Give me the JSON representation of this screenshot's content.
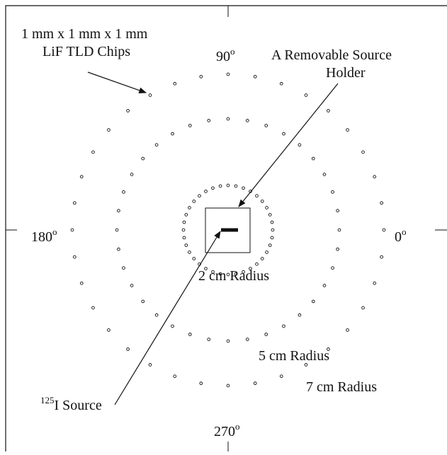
{
  "labels": {
    "chips_line1": "1 mm x 1 mm x 1 mm",
    "chips_line2": "LiF TLD Chips",
    "holder_line1": "A Removable Source",
    "holder_line2": "Holder",
    "angle_90": {
      "text": "90",
      "sup": "o"
    },
    "angle_180": {
      "text": "180",
      "sup": "o"
    },
    "angle_0": {
      "text": "0",
      "sup": "o"
    },
    "angle_270": {
      "text": "270",
      "sup": "o"
    },
    "radius_2": "2 cm Radius",
    "radius_5": "5 cm Radius",
    "radius_7": "7 cm Radius",
    "source": {
      "sup": "125",
      "text": "I Source"
    }
  }
}
